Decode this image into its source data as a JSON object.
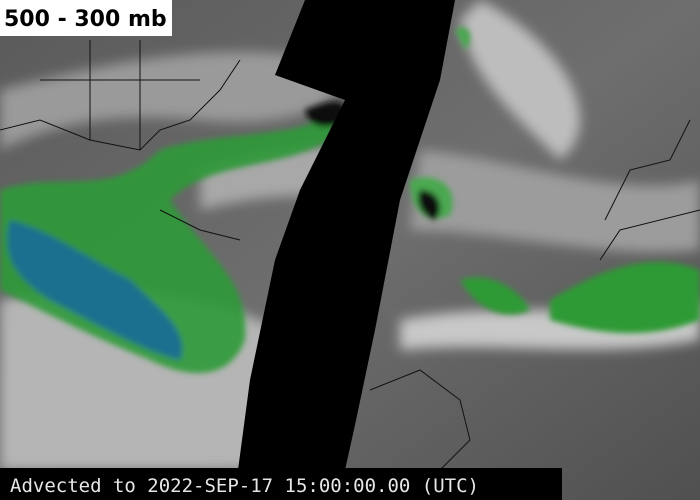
{
  "title": "500 - 300 mb",
  "footer": "Advected to 2022-SEP-17 15:00:00.00 (UTC)"
}
